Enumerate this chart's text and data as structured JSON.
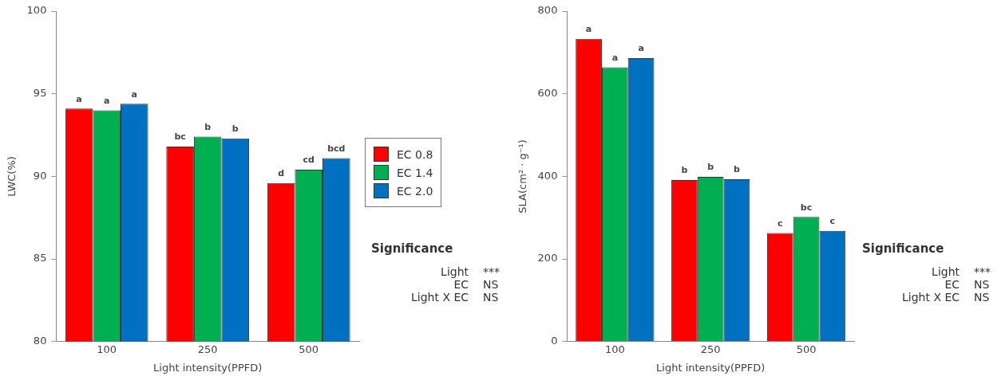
{
  "chart_data": [
    {
      "type": "bar",
      "xlabel": "Light intensity(PPFD)",
      "ylabel": "LWC(%)",
      "categories": [
        "100",
        "250",
        "500"
      ],
      "ylim": [
        80,
        100
      ],
      "yticks": [
        80,
        85,
        90,
        95,
        100
      ],
      "grid": false,
      "legend": "right",
      "series": [
        {
          "name": "EC 0.8",
          "color": "#ff0000",
          "values": [
            94.1,
            91.8,
            89.6
          ],
          "value_labels": [
            "a",
            "bc",
            "d"
          ]
        },
        {
          "name": "EC 1.4",
          "color": "#00b050",
          "values": [
            94.0,
            92.4,
            90.4
          ],
          "value_labels": [
            "a",
            "b",
            "cd"
          ]
        },
        {
          "name": "EC 2.0",
          "color": "#0070c0",
          "values": [
            94.4,
            92.3,
            91.1
          ],
          "value_labels": [
            "a",
            "b",
            "bcd"
          ]
        }
      ],
      "annotations": [
        "Significance",
        "Light",
        "***",
        "EC",
        "NS",
        "Light X EC",
        "NS"
      ]
    },
    {
      "type": "bar",
      "xlabel": "Light intensity(PPFD)",
      "ylabel": "SLA(cm² · g⁻¹)",
      "categories": [
        "100",
        "250",
        "500"
      ],
      "ylim": [
        0,
        800
      ],
      "yticks": [
        0,
        200,
        400,
        600,
        800
      ],
      "grid": false,
      "series": [
        {
          "color": "#ff0000",
          "values": [
            733,
            391,
            263
          ],
          "value_labels": [
            "a",
            "b",
            "c"
          ]
        },
        {
          "color": "#00b050",
          "values": [
            664,
            399,
            302
          ],
          "value_labels": [
            "a",
            "b",
            "bc"
          ]
        },
        {
          "color": "#0070c0",
          "values": [
            686,
            393,
            268
          ],
          "value_labels": [
            "a",
            "b",
            "c"
          ]
        }
      ],
      "annotations": [
        "Significance",
        "Light",
        "***",
        "EC",
        "NS",
        "Light X EC",
        "NS"
      ]
    }
  ]
}
